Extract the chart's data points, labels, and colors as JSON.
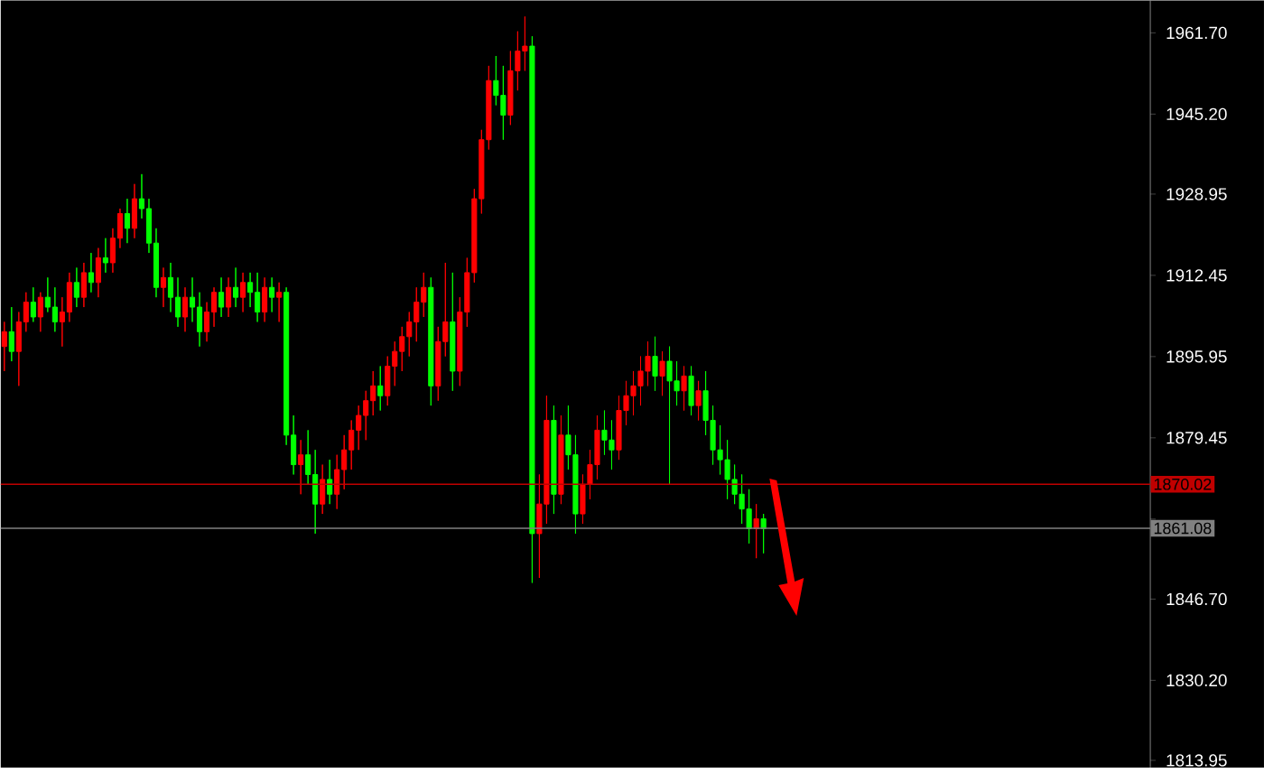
{
  "chart_data": {
    "type": "candlestick",
    "categories": [
      null,
      null,
      null,
      null,
      null,
      null,
      null,
      null,
      null,
      null,
      null,
      null,
      null,
      null,
      null,
      null,
      null,
      null,
      null,
      null,
      null,
      null,
      null,
      null,
      null,
      null,
      null,
      null,
      null,
      null,
      null,
      null,
      null,
      null,
      null,
      null,
      null,
      null,
      null,
      null,
      null,
      null,
      null,
      null,
      null,
      null,
      null,
      null,
      null,
      null,
      null,
      null,
      null,
      null,
      null,
      null,
      null,
      null,
      null,
      null,
      null,
      null,
      null,
      null,
      null,
      null,
      null,
      null,
      null,
      null,
      null,
      null,
      null,
      null,
      null,
      null,
      null,
      null,
      null,
      null,
      null,
      null,
      null,
      null,
      null,
      null,
      null,
      null,
      null,
      null,
      null,
      null,
      null,
      null,
      null,
      null,
      null,
      null,
      null,
      null,
      null,
      null,
      null,
      null,
      null,
      null,
      null,
      null,
      null,
      null,
      null,
      null,
      null,
      null,
      null,
      null,
      null,
      null,
      null,
      null,
      null,
      null,
      null,
      null,
      null,
      null,
      null,
      null,
      null,
      null,
      null,
      null,
      null,
      null,
      null,
      null,
      null,
      null,
      null,
      null,
      null,
      null,
      null,
      null,
      null,
      null,
      null,
      null,
      null,
      null,
      null,
      null,
      null,
      null,
      null,
      null,
      null,
      null,
      null
    ],
    "ohlc": [
      [
        1898,
        1903,
        1893,
        1901
      ],
      [
        1901,
        1906,
        1895,
        1897
      ],
      [
        1897,
        1905,
        1890,
        1903
      ],
      [
        1903,
        1909,
        1901,
        1907
      ],
      [
        1907,
        1910,
        1903,
        1904
      ],
      [
        1904,
        1909,
        1901,
        1908
      ],
      [
        1908,
        1912,
        1905,
        1906
      ],
      [
        1906,
        1910,
        1901,
        1903
      ],
      [
        1903,
        1908,
        1898,
        1905
      ],
      [
        1905,
        1913,
        1903,
        1911
      ],
      [
        1911,
        1914,
        1906,
        1908
      ],
      [
        1908,
        1915,
        1906,
        1913
      ],
      [
        1913,
        1917,
        1909,
        1911
      ],
      [
        1911,
        1918,
        1908,
        1916
      ],
      [
        1916,
        1920,
        1913,
        1915
      ],
      [
        1915,
        1922,
        1913,
        1920
      ],
      [
        1920,
        1926,
        1918,
        1925
      ],
      [
        1925,
        1928,
        1919,
        1922
      ],
      [
        1922,
        1931,
        1920,
        1928
      ],
      [
        1928,
        1933,
        1924,
        1926
      ],
      [
        1926,
        1928,
        1917,
        1919
      ],
      [
        1919,
        1922,
        1908,
        1910
      ],
      [
        1910,
        1914,
        1906,
        1912
      ],
      [
        1912,
        1915,
        1905,
        1908
      ],
      [
        1908,
        1912,
        1902,
        1904
      ],
      [
        1904,
        1910,
        1901,
        1908
      ],
      [
        1908,
        1912,
        1903,
        1906
      ],
      [
        1906,
        1909,
        1898,
        1901
      ],
      [
        1901,
        1907,
        1899,
        1905
      ],
      [
        1905,
        1910,
        1902,
        1909
      ],
      [
        1909,
        1912,
        1904,
        1906
      ],
      [
        1906,
        1912,
        1904,
        1910
      ],
      [
        1910,
        1914,
        1906,
        1908
      ],
      [
        1908,
        1913,
        1905,
        1911
      ],
      [
        1911,
        1913,
        1906,
        1909
      ],
      [
        1909,
        1913,
        1903,
        1905
      ],
      [
        1905,
        1912,
        1903,
        1910
      ],
      [
        1910,
        1912,
        1905,
        1908
      ],
      [
        1908,
        1911,
        1903,
        1909
      ],
      [
        1909,
        1910,
        1878,
        1880
      ],
      [
        1880,
        1884,
        1872,
        1874
      ],
      [
        1874,
        1879,
        1868,
        1876
      ],
      [
        1876,
        1881,
        1870,
        1872
      ],
      [
        1872,
        1877,
        1860,
        1866
      ],
      [
        1866,
        1874,
        1864,
        1871
      ],
      [
        1871,
        1875,
        1866,
        1868
      ],
      [
        1868,
        1876,
        1865,
        1873
      ],
      [
        1873,
        1880,
        1869,
        1877
      ],
      [
        1877,
        1883,
        1873,
        1881
      ],
      [
        1881,
        1886,
        1877,
        1884
      ],
      [
        1884,
        1889,
        1879,
        1887
      ],
      [
        1887,
        1893,
        1884,
        1890
      ],
      [
        1890,
        1894,
        1885,
        1888
      ],
      [
        1888,
        1896,
        1886,
        1894
      ],
      [
        1894,
        1899,
        1890,
        1897
      ],
      [
        1897,
        1902,
        1893,
        1900
      ],
      [
        1900,
        1905,
        1896,
        1903
      ],
      [
        1903,
        1910,
        1899,
        1907
      ],
      [
        1907,
        1913,
        1904,
        1910
      ],
      [
        1910,
        1912,
        1886,
        1890
      ],
      [
        1890,
        1902,
        1887,
        1899
      ],
      [
        1899,
        1915,
        1896,
        1903
      ],
      [
        1903,
        1913,
        1889,
        1893
      ],
      [
        1893,
        1908,
        1890,
        1905
      ],
      [
        1905,
        1916,
        1902,
        1913
      ],
      [
        1913,
        1930,
        1911,
        1928
      ],
      [
        1928,
        1942,
        1925,
        1940
      ],
      [
        1940,
        1955,
        1938,
        1952
      ],
      [
        1952,
        1957,
        1947,
        1949
      ],
      [
        1949,
        1955,
        1940,
        1945
      ],
      [
        1945,
        1958,
        1943,
        1954
      ],
      [
        1954,
        1962,
        1950,
        1958
      ],
      [
        1958,
        1965,
        1954,
        1959
      ],
      [
        1959,
        1961,
        1850,
        1860
      ],
      [
        1860,
        1872,
        1851,
        1866
      ],
      [
        1866,
        1888,
        1862,
        1883
      ],
      [
        1883,
        1886,
        1864,
        1868
      ],
      [
        1868,
        1884,
        1866,
        1880
      ],
      [
        1880,
        1886,
        1873,
        1876
      ],
      [
        1876,
        1880,
        1860,
        1864
      ],
      [
        1864,
        1872,
        1862,
        1870
      ],
      [
        1870,
        1877,
        1867,
        1874
      ],
      [
        1874,
        1884,
        1871,
        1881
      ],
      [
        1881,
        1885,
        1876,
        1879
      ],
      [
        1879,
        1883,
        1873,
        1877
      ],
      [
        1877,
        1888,
        1875,
        1885
      ],
      [
        1885,
        1891,
        1882,
        1888
      ],
      [
        1888,
        1893,
        1884,
        1890
      ],
      [
        1890,
        1896,
        1886,
        1893
      ],
      [
        1893,
        1899,
        1890,
        1896
      ],
      [
        1896,
        1900,
        1889,
        1892
      ],
      [
        1892,
        1897,
        1888,
        1895
      ],
      [
        1895,
        1898,
        1870,
        1891
      ],
      [
        1891,
        1895,
        1886,
        1889
      ],
      [
        1889,
        1894,
        1885,
        1892
      ],
      [
        1892,
        1894,
        1884,
        1886
      ],
      [
        1886,
        1891,
        1883,
        1889
      ],
      [
        1889,
        1893,
        1880,
        1883
      ],
      [
        1883,
        1886,
        1874,
        1877
      ],
      [
        1877,
        1882,
        1872,
        1875
      ],
      [
        1875,
        1879,
        1867,
        1871
      ],
      [
        1871,
        1874,
        1866,
        1868
      ],
      [
        1868,
        1872,
        1862,
        1865
      ],
      [
        1865,
        1869,
        1858,
        1861
      ],
      [
        1861,
        1866,
        1855,
        1863
      ],
      [
        1863,
        1864,
        1856,
        1861
      ],
      null,
      null,
      null,
      null,
      null,
      null,
      null,
      null,
      null,
      null,
      null,
      null,
      null,
      null,
      null,
      null,
      null,
      null,
      null,
      null,
      null,
      null,
      null,
      null,
      null,
      null,
      null,
      null,
      null,
      null,
      null,
      null,
      null,
      null,
      null,
      null,
      null,
      null,
      null,
      null,
      null,
      null,
      null,
      null,
      null,
      null,
      null,
      null,
      null,
      null,
      null,
      null,
      null
    ],
    "colors": [
      "#ff0000",
      "#00ff00",
      "#ff0000",
      "#ff0000",
      "#00ff00",
      "#ff0000",
      "#00ff00",
      "#00ff00",
      "#ff0000",
      "#ff0000",
      "#00ff00",
      "#ff0000",
      "#00ff00",
      "#ff0000",
      "#00ff00",
      "#ff0000",
      "#ff0000",
      "#00ff00",
      "#ff0000",
      "#00ff00",
      "#00ff00",
      "#00ff00",
      "#ff0000",
      "#00ff00",
      "#00ff00",
      "#ff0000",
      "#00ff00",
      "#00ff00",
      "#ff0000",
      "#ff0000",
      "#00ff00",
      "#ff0000",
      "#00ff00",
      "#ff0000",
      "#00ff00",
      "#00ff00",
      "#ff0000",
      "#00ff00",
      "#ff0000",
      "#00ff00",
      "#00ff00",
      "#ff0000",
      "#00ff00",
      "#00ff00",
      "#ff0000",
      "#00ff00",
      "#ff0000",
      "#ff0000",
      "#ff0000",
      "#ff0000",
      "#ff0000",
      "#ff0000",
      "#00ff00",
      "#ff0000",
      "#ff0000",
      "#ff0000",
      "#ff0000",
      "#ff0000",
      "#ff0000",
      "#00ff00",
      "#ff0000",
      "#ff0000",
      "#00ff00",
      "#ff0000",
      "#ff0000",
      "#ff0000",
      "#ff0000",
      "#ff0000",
      "#00ff00",
      "#00ff00",
      "#ff0000",
      "#ff0000",
      "#ff0000",
      "#00ff00",
      "#ff0000",
      "#ff0000",
      "#00ff00",
      "#ff0000",
      "#00ff00",
      "#00ff00",
      "#ff0000",
      "#ff0000",
      "#ff0000",
      "#00ff00",
      "#00ff00",
      "#ff0000",
      "#ff0000",
      "#ff0000",
      "#ff0000",
      "#ff0000",
      "#00ff00",
      "#ff0000",
      "#00ff00",
      "#00ff00",
      "#ff0000",
      "#00ff00",
      "#ff0000",
      "#00ff00",
      "#00ff00",
      "#00ff00",
      "#00ff00",
      "#00ff00",
      "#00ff00",
      "#00ff00",
      "#ff0000",
      "#00ff00",
      null,
      null,
      null,
      null,
      null,
      null,
      null,
      null,
      null,
      null,
      null,
      null,
      null,
      null,
      null,
      null,
      null,
      null,
      null,
      null,
      null,
      null,
      null,
      null,
      null,
      null,
      null,
      null,
      null,
      null,
      null,
      null,
      null,
      null,
      null,
      null,
      null,
      null,
      null,
      null,
      null,
      null,
      null,
      null,
      null,
      null,
      null,
      null,
      null,
      null,
      null,
      null,
      null
    ],
    "ylim": [
      1812.5,
      1968.3
    ],
    "yticks": [
      1813.95,
      {
        "value": 1830.2,
        "label": "1830.20"
      },
      {
        "value": 1846.7,
        "label": "1846.70"
      },
      {
        "value": 1862.95,
        "label": null
      },
      1879.45,
      1895.95,
      1912.45,
      1928.95,
      {
        "value": 1945.2,
        "label": "1945.20"
      },
      {
        "value": 1961.7,
        "label": "1961.70"
      }
    ],
    "ref_lines": [
      {
        "axis": "y",
        "value": 1870.02,
        "label": "1870.02",
        "color": "#c00000"
      },
      {
        "axis": "y",
        "value": 1861.08,
        "label": "1861.08",
        "color": "#808080"
      }
    ],
    "grid": false
  }
}
